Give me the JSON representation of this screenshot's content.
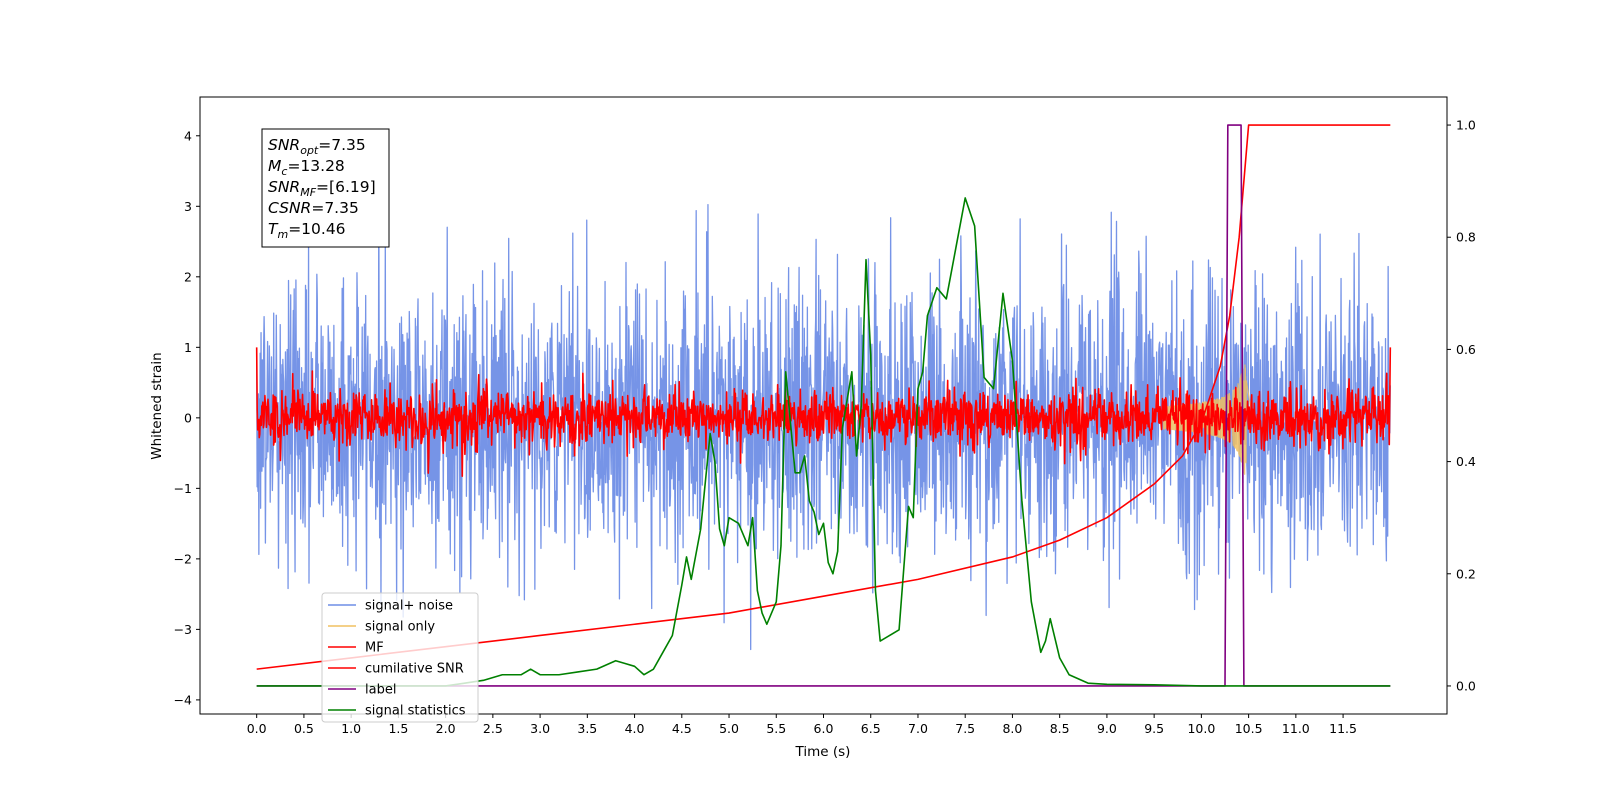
{
  "chart_data": {
    "type": "line",
    "title": "",
    "xlabel": "Time (s)",
    "ylabel": "Whitened strain",
    "ylabel_right": "",
    "xlim": [
      -0.6,
      12.6
    ],
    "ylim": [
      -4.2,
      4.55
    ],
    "ylim_right": [
      -0.05,
      1.05
    ],
    "x_ticks": [
      0.0,
      0.5,
      1.0,
      1.5,
      2.0,
      2.5,
      3.0,
      3.5,
      4.0,
      4.5,
      5.0,
      5.5,
      6.0,
      6.5,
      7.0,
      7.5,
      8.0,
      8.5,
      9.0,
      9.5,
      10.0,
      10.5,
      11.0,
      11.5
    ],
    "x_tick_labels": [
      "0.0",
      "0.5",
      "1.0",
      "1.5",
      "2.0",
      "2.5",
      "3.0",
      "3.5",
      "4.0",
      "4.5",
      "5.0",
      "5.5",
      "6.0",
      "6.5",
      "7.0",
      "7.5",
      "8.0",
      "8.5",
      "9.0",
      "9.5",
      "10.0",
      "10.5",
      "11.0",
      "11.5"
    ],
    "y_ticks": [
      -4,
      -3,
      -2,
      -1,
      0,
      1,
      2,
      3,
      4
    ],
    "y_tick_labels": [
      "−4",
      "−3",
      "−2",
      "−1",
      "0",
      "1",
      "2",
      "3",
      "4"
    ],
    "y_ticks_right": [
      0.0,
      0.2,
      0.4,
      0.6,
      0.8,
      1.0
    ],
    "y_tick_labels_right": [
      "0.0",
      "0.2",
      "0.4",
      "0.6",
      "0.8",
      "1.0"
    ],
    "grid": false,
    "legend_position": "lower-left",
    "info_box": [
      {
        "sym": "SNR",
        "sub": "opt",
        "val": "=7.35"
      },
      {
        "sym": "M",
        "sub": "c",
        "val": "=13.28"
      },
      {
        "sym": "SNR",
        "sub": "MF",
        "val": "=[6.19]"
      },
      {
        "sym": "CSNR",
        "sub": "",
        "val": "=7.35"
      },
      {
        "sym": "T",
        "sub": "m",
        "val": "=10.46"
      }
    ],
    "series": [
      {
        "name": "signal+ noise",
        "axis": "left",
        "color": "#6f8ee6",
        "kind": "noise",
        "x_range": [
          0.0,
          12.0
        ],
        "amplitude_std": 1.0,
        "peak_range": [
          -3.7,
          4.15
        ]
      },
      {
        "name": "signal only",
        "axis": "left",
        "color": "#f0c060",
        "kind": "chirp",
        "x_range": [
          9.6,
          10.55
        ],
        "peak_amplitude": 0.8,
        "peak_time": 10.46
      },
      {
        "name": "MF",
        "axis": "left",
        "color": "#ff0000",
        "kind": "noise",
        "x_range": [
          0.0,
          12.0
        ],
        "amplitude_std": 0.2,
        "start_value": 1.0,
        "end_value": 1.0
      },
      {
        "name": "cumilative SNR",
        "axis": "right",
        "color": "#ff0000",
        "x": [
          0.0,
          1.0,
          2.0,
          3.0,
          4.0,
          5.0,
          6.0,
          7.0,
          8.0,
          8.5,
          9.0,
          9.5,
          9.8,
          10.0,
          10.2,
          10.3,
          10.4,
          10.46,
          10.5,
          11.0,
          12.0
        ],
        "y": [
          0.03,
          0.05,
          0.07,
          0.09,
          0.11,
          0.13,
          0.16,
          0.19,
          0.23,
          0.26,
          0.3,
          0.36,
          0.41,
          0.47,
          0.57,
          0.66,
          0.8,
          0.92,
          1.0,
          1.0,
          1.0
        ]
      },
      {
        "name": "label",
        "axis": "right",
        "color": "#800080",
        "x": [
          0.0,
          10.25,
          10.28,
          10.42,
          10.45,
          12.0
        ],
        "y": [
          0.0,
          0.0,
          1.0,
          1.0,
          0.0,
          0.0
        ]
      },
      {
        "name": "signal statistics",
        "axis": "right",
        "color": "#008000",
        "x": [
          0.0,
          0.5,
          1.0,
          1.5,
          2.0,
          2.2,
          2.4,
          2.6,
          2.8,
          2.9,
          3.0,
          3.2,
          3.4,
          3.6,
          3.8,
          3.9,
          4.0,
          4.1,
          4.2,
          4.3,
          4.4,
          4.5,
          4.55,
          4.6,
          4.7,
          4.8,
          4.85,
          4.9,
          4.95,
          5.0,
          5.1,
          5.2,
          5.25,
          5.3,
          5.35,
          5.4,
          5.5,
          5.55,
          5.6,
          5.7,
          5.75,
          5.8,
          5.85,
          5.9,
          5.95,
          6.0,
          6.05,
          6.1,
          6.15,
          6.2,
          6.3,
          6.35,
          6.4,
          6.45,
          6.5,
          6.55,
          6.6,
          6.7,
          6.8,
          6.9,
          6.95,
          7.0,
          7.05,
          7.1,
          7.2,
          7.3,
          7.4,
          7.5,
          7.6,
          7.7,
          7.8,
          7.9,
          8.0,
          8.1,
          8.2,
          8.3,
          8.35,
          8.4,
          8.5,
          8.6,
          8.8,
          9.0,
          9.5,
          10.0,
          11.0,
          12.0
        ],
        "y": [
          0.0,
          0.0,
          0.0,
          0.0,
          0.0,
          0.005,
          0.01,
          0.02,
          0.02,
          0.03,
          0.02,
          0.02,
          0.025,
          0.03,
          0.045,
          0.04,
          0.035,
          0.02,
          0.03,
          0.06,
          0.09,
          0.18,
          0.23,
          0.19,
          0.28,
          0.45,
          0.4,
          0.28,
          0.25,
          0.3,
          0.29,
          0.25,
          0.3,
          0.17,
          0.13,
          0.11,
          0.15,
          0.25,
          0.56,
          0.38,
          0.38,
          0.41,
          0.33,
          0.31,
          0.27,
          0.29,
          0.22,
          0.2,
          0.24,
          0.46,
          0.56,
          0.41,
          0.5,
          0.76,
          0.59,
          0.17,
          0.08,
          0.09,
          0.1,
          0.32,
          0.3,
          0.53,
          0.56,
          0.66,
          0.71,
          0.69,
          0.78,
          0.87,
          0.82,
          0.55,
          0.53,
          0.7,
          0.58,
          0.33,
          0.15,
          0.06,
          0.08,
          0.12,
          0.05,
          0.02,
          0.005,
          0.003,
          0.002,
          0.0,
          0.0,
          0.0
        ]
      }
    ]
  }
}
